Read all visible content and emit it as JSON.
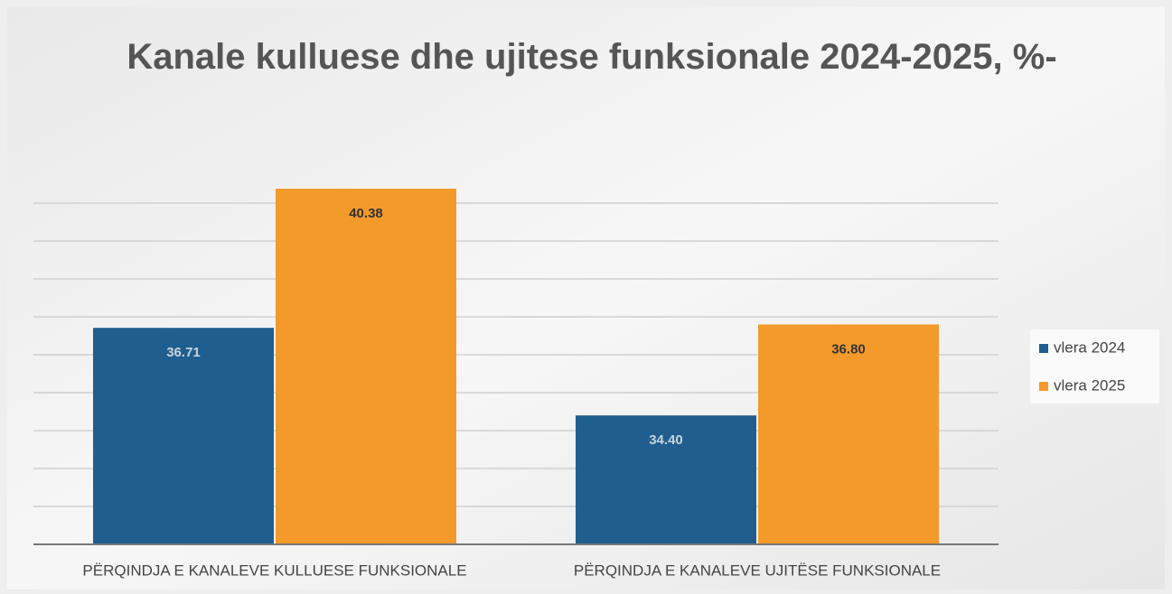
{
  "chart_data": {
    "type": "bar",
    "title": "Kanale kulluese dhe ujitese funksionale 2024-2025, %",
    "categories": [
      "PËRQINDJA E KANALEVE KULLUESE FUNKSIONALE",
      "PËRQINDJA E KANALEVE UJITËSE FUNKSIONALE"
    ],
    "series": [
      {
        "name": "vlera 2024",
        "color": "#1f5e8e",
        "values": [
          36.71,
          34.4
        ],
        "value_labels": [
          "36.71",
          "34.40"
        ]
      },
      {
        "name": "vlera 2025",
        "color": "#f39a2b",
        "values": [
          40.38,
          36.8
        ],
        "value_labels": [
          "40.38",
          "36.80"
        ]
      }
    ],
    "ylim": [
      31,
      41
    ],
    "yticks": [
      31,
      32,
      33,
      34,
      35,
      36,
      37,
      38,
      39,
      40
    ],
    "tick_labels": false,
    "grid": true,
    "legend": "right"
  }
}
